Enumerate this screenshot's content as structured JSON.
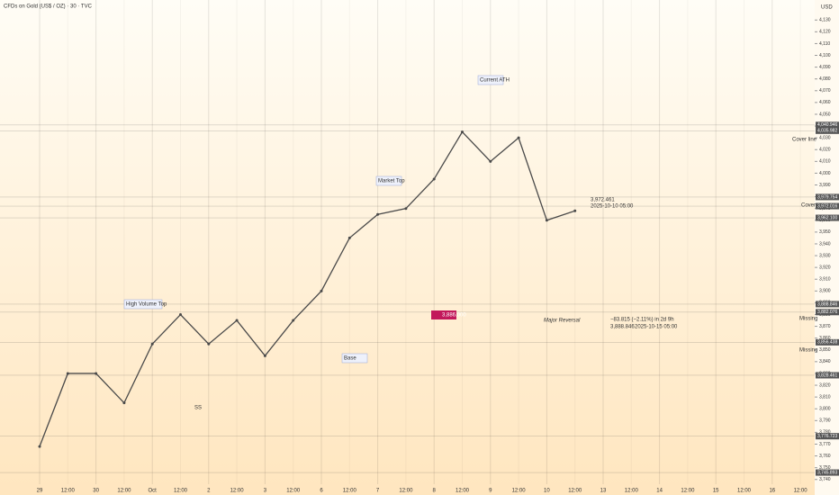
{
  "chart_data": {
    "type": "line",
    "title": "CFDs on Gold (US$ / OZ) · 30 · TVC",
    "currency": "USD",
    "categories": [
      "29",
      "12:00",
      "30",
      "12:00",
      "Oct",
      "12:00",
      "2",
      "12:00",
      "3",
      "12:00",
      "6",
      "12:00",
      "7",
      "12:00",
      "8",
      "12:00",
      "9",
      "12:00",
      "10",
      "12:00",
      "13",
      "12:00",
      "14",
      "12:00",
      "15",
      "12:00",
      "16",
      "12:00"
    ],
    "series": [
      {
        "name": "Gold",
        "color": "#4a4a4a",
        "values": [
          3768,
          3830,
          3830,
          3805,
          3855,
          3880,
          3855,
          3875,
          3845,
          3875,
          3900,
          3945,
          3965,
          3970,
          3995,
          4035,
          4010,
          4030,
          3960,
          3968,
          null,
          null,
          null,
          null,
          null,
          null,
          null,
          null
        ]
      }
    ],
    "ylim": [
      3736,
      4147
    ],
    "yticks": [
      {
        "value": 3740,
        "label": "3,740"
      },
      {
        "value": 3750,
        "label": "3,750"
      },
      {
        "value": 3760,
        "label": "3,760"
      },
      {
        "value": 3770,
        "label": "3,770"
      },
      {
        "value": 3780,
        "label": "3,780"
      },
      {
        "value": 3790,
        "label": "3,790"
      },
      {
        "value": 3800,
        "label": "3,800"
      },
      {
        "value": 3810,
        "label": "3,810"
      },
      {
        "value": 3820,
        "label": "3,820"
      },
      {
        "value": 3830,
        "label": "3,830"
      },
      {
        "value": 3840,
        "label": "3,840"
      },
      {
        "value": 3850,
        "label": "3,850"
      },
      {
        "value": 3860,
        "label": "3,860"
      },
      {
        "value": 3870,
        "label": "3,870"
      },
      {
        "value": 3880,
        "label": "3,880"
      },
      {
        "value": 3890,
        "label": "3,890"
      },
      {
        "value": 3900,
        "label": "3,900"
      },
      {
        "value": 3910,
        "label": "3,910"
      },
      {
        "value": 3920,
        "label": "3,920"
      },
      {
        "value": 3930,
        "label": "3,930"
      },
      {
        "value": 3940,
        "label": "3,940"
      },
      {
        "value": 3950,
        "label": "3,950"
      },
      {
        "value": 3960,
        "label": "3,960"
      },
      {
        "value": 3970,
        "label": "3,970"
      },
      {
        "value": 3980,
        "label": "3,980"
      },
      {
        "value": 3990,
        "label": "3,990"
      },
      {
        "value": 4000,
        "label": "4,000"
      },
      {
        "value": 4010,
        "label": "4,010"
      },
      {
        "value": 4020,
        "label": "4,020"
      },
      {
        "value": 4030,
        "label": "4,030"
      },
      {
        "value": 4040,
        "label": "4,040"
      },
      {
        "value": 4050,
        "label": "4,050"
      },
      {
        "value": 4060,
        "label": "4,060"
      },
      {
        "value": 4070,
        "label": "4,070"
      },
      {
        "value": 4080,
        "label": "4,080"
      },
      {
        "value": 4090,
        "label": "4,090"
      },
      {
        "value": 4100,
        "label": "4,100"
      },
      {
        "value": 4110,
        "label": "4,110"
      },
      {
        "value": 4120,
        "label": "4,120"
      },
      {
        "value": 4130,
        "label": "4,130"
      }
    ],
    "price_labels": [
      {
        "value": 4040.946,
        "label": "4,040.946"
      },
      {
        "value": 4035.982,
        "label": "4,035.982"
      },
      {
        "value": 3979.754,
        "label": "3,979.754"
      },
      {
        "value": 3972.016,
        "label": "3,972.016"
      },
      {
        "value": 3962.1,
        "label": "3,962.100"
      },
      {
        "value": 3888.846,
        "label": "3,888.846"
      },
      {
        "value": 3882.076,
        "label": "3,882.076"
      },
      {
        "value": 3856.438,
        "label": "3,856.438"
      },
      {
        "value": 3828.461,
        "label": "3,828.461"
      },
      {
        "value": 3776.723,
        "label": "3,776.723"
      },
      {
        "value": 3745.893,
        "label": "3,745.893"
      }
    ],
    "annotations": [
      "High Volume Top",
      "Market Top",
      "Current ATH",
      "Base",
      "Major Reversal",
      "3,886.000",
      "−83.815 (−2.11%) in 2d 9h",
      "3,888.846",
      "2025-10-15 05:00",
      "3,972.461",
      "2025-10-10 05:00",
      "SS",
      "Cover line",
      "Cover",
      "Missing",
      "Missing"
    ]
  }
}
